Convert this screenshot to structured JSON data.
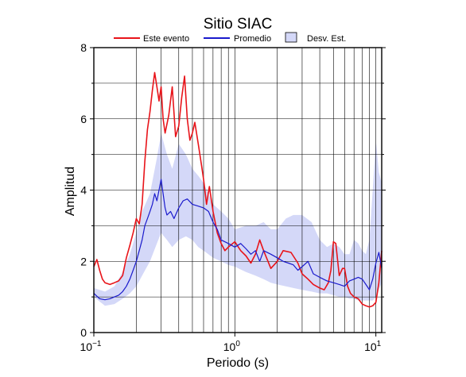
{
  "chart_data": {
    "type": "line",
    "title": "Sitio SIAC",
    "xlabel": "Periodo (s)",
    "ylabel": "Amplitud",
    "xscale": "log",
    "xlim": [
      0.1,
      11
    ],
    "ylim": [
      0,
      8
    ],
    "x_ticks": [
      {
        "value": 0.1,
        "base": "10",
        "exp": "−1"
      },
      {
        "value": 1,
        "base": "10",
        "exp": "0"
      },
      {
        "value": 10,
        "base": "10",
        "exp": "1"
      }
    ],
    "y_ticks": [
      0,
      2,
      4,
      6,
      8
    ],
    "grid": true,
    "legend": {
      "placement": "top",
      "entries": [
        {
          "label": "Este evento",
          "color": "#e8141a",
          "kind": "line"
        },
        {
          "label": "Promedio",
          "color": "#1a1acc",
          "kind": "line"
        },
        {
          "label": "Desv. Est.",
          "color": "#d4d8f8",
          "kind": "band"
        }
      ]
    },
    "band": {
      "name": "Desv. Est.",
      "color": "#d4d8f8",
      "x": [
        0.1,
        0.12,
        0.14,
        0.16,
        0.18,
        0.2,
        0.22,
        0.25,
        0.28,
        0.3,
        0.33,
        0.36,
        0.4,
        0.45,
        0.5,
        0.55,
        0.6,
        0.7,
        0.8,
        0.9,
        1.0,
        1.2,
        1.4,
        1.6,
        1.8,
        2.0,
        2.3,
        2.6,
        3.0,
        3.5,
        4.0,
        4.5,
        5.0,
        5.5,
        6.0,
        6.5,
        7.0,
        7.5,
        8.0,
        8.5,
        9.0,
        9.5,
        10.0,
        10.5,
        11.0
      ],
      "upper": [
        1.25,
        1.15,
        1.3,
        1.7,
        2.2,
        2.8,
        3.4,
        3.9,
        4.9,
        5.6,
        5.0,
        4.6,
        5.3,
        5.0,
        4.6,
        4.4,
        4.2,
        3.6,
        3.4,
        3.2,
        2.9,
        3.0,
        3.0,
        3.1,
        2.9,
        2.9,
        3.2,
        3.3,
        3.3,
        3.1,
        2.6,
        2.4,
        2.5,
        2.4,
        2.2,
        2.2,
        2.6,
        2.5,
        2.3,
        2.2,
        2.6,
        4.0,
        5.4,
        4.5,
        4.2
      ],
      "lower": [
        1.0,
        0.75,
        0.8,
        0.95,
        1.1,
        1.3,
        1.6,
        2.0,
        2.5,
        2.8,
        2.6,
        2.4,
        2.6,
        2.7,
        2.6,
        2.4,
        2.3,
        2.1,
        2.0,
        1.9,
        1.85,
        1.7,
        1.6,
        1.5,
        1.4,
        1.35,
        1.3,
        1.25,
        1.2,
        1.15,
        1.1,
        1.1,
        1.05,
        1.0,
        1.0,
        0.95,
        0.95,
        0.9,
        0.9,
        0.9,
        0.9,
        0.9,
        1.0,
        1.2,
        1.4
      ]
    },
    "series": [
      {
        "name": "Este evento",
        "color": "#e8141a",
        "x": [
          0.1,
          0.105,
          0.11,
          0.115,
          0.12,
          0.13,
          0.14,
          0.15,
          0.16,
          0.17,
          0.18,
          0.19,
          0.2,
          0.21,
          0.22,
          0.23,
          0.24,
          0.25,
          0.26,
          0.27,
          0.28,
          0.29,
          0.3,
          0.31,
          0.32,
          0.34,
          0.36,
          0.38,
          0.4,
          0.42,
          0.44,
          0.46,
          0.48,
          0.5,
          0.52,
          0.55,
          0.58,
          0.6,
          0.63,
          0.66,
          0.7,
          0.75,
          0.8,
          0.85,
          0.9,
          1.0,
          1.1,
          1.2,
          1.3,
          1.4,
          1.5,
          1.6,
          1.8,
          2.0,
          2.2,
          2.5,
          2.8,
          3.0,
          3.3,
          3.6,
          4.0,
          4.3,
          4.6,
          4.8,
          5.0,
          5.2,
          5.5,
          5.8,
          6.0,
          6.3,
          6.6,
          7.0,
          7.5,
          8.0,
          8.5,
          9.0,
          9.5,
          10.0,
          10.5,
          11.0
        ],
        "values": [
          1.85,
          2.05,
          1.75,
          1.5,
          1.4,
          1.35,
          1.4,
          1.45,
          1.6,
          2.1,
          2.45,
          2.8,
          3.2,
          3.05,
          3.6,
          4.8,
          5.7,
          6.2,
          6.8,
          7.3,
          6.9,
          6.5,
          6.9,
          6.0,
          5.6,
          6.1,
          6.9,
          5.5,
          5.8,
          6.6,
          7.2,
          6.0,
          5.4,
          5.6,
          5.9,
          5.3,
          4.7,
          4.3,
          3.6,
          4.1,
          3.4,
          2.8,
          2.5,
          2.3,
          2.4,
          2.55,
          2.3,
          2.15,
          1.95,
          2.2,
          2.6,
          2.3,
          1.8,
          2.0,
          2.3,
          2.25,
          1.95,
          1.65,
          1.5,
          1.35,
          1.25,
          1.2,
          1.4,
          1.75,
          2.55,
          2.5,
          1.6,
          1.8,
          1.8,
          1.3,
          1.1,
          1.0,
          0.95,
          0.8,
          0.75,
          0.72,
          0.75,
          0.85,
          1.4,
          2.3
        ]
      },
      {
        "name": "Promedio",
        "color": "#1a1acc",
        "x": [
          0.1,
          0.11,
          0.12,
          0.13,
          0.14,
          0.15,
          0.16,
          0.17,
          0.18,
          0.19,
          0.2,
          0.21,
          0.22,
          0.23,
          0.24,
          0.25,
          0.26,
          0.27,
          0.28,
          0.29,
          0.3,
          0.31,
          0.32,
          0.33,
          0.35,
          0.37,
          0.4,
          0.43,
          0.46,
          0.5,
          0.55,
          0.6,
          0.65,
          0.7,
          0.75,
          0.8,
          0.9,
          1.0,
          1.1,
          1.2,
          1.3,
          1.4,
          1.5,
          1.6,
          1.8,
          2.0,
          2.2,
          2.4,
          2.6,
          2.8,
          3.0,
          3.3,
          3.6,
          4.0,
          4.5,
          5.0,
          5.5,
          6.0,
          6.5,
          7.0,
          7.5,
          8.0,
          8.5,
          9.0,
          9.5,
          10.0,
          10.5,
          11.0
        ],
        "values": [
          1.1,
          0.95,
          0.92,
          0.95,
          1.0,
          1.05,
          1.15,
          1.3,
          1.5,
          1.75,
          2.0,
          2.3,
          2.6,
          3.0,
          3.2,
          3.4,
          3.6,
          3.9,
          3.7,
          4.0,
          4.3,
          3.9,
          3.5,
          3.3,
          3.4,
          3.2,
          3.5,
          3.7,
          3.75,
          3.6,
          3.55,
          3.5,
          3.4,
          3.1,
          2.9,
          2.6,
          2.5,
          2.4,
          2.5,
          2.35,
          2.2,
          2.3,
          2.0,
          2.3,
          2.2,
          2.1,
          2.0,
          1.95,
          1.9,
          1.75,
          1.85,
          2.0,
          1.65,
          1.55,
          1.45,
          1.4,
          1.35,
          1.3,
          1.45,
          1.5,
          1.55,
          1.5,
          1.35,
          1.2,
          1.5,
          1.95,
          2.25,
          1.8
        ]
      }
    ]
  }
}
